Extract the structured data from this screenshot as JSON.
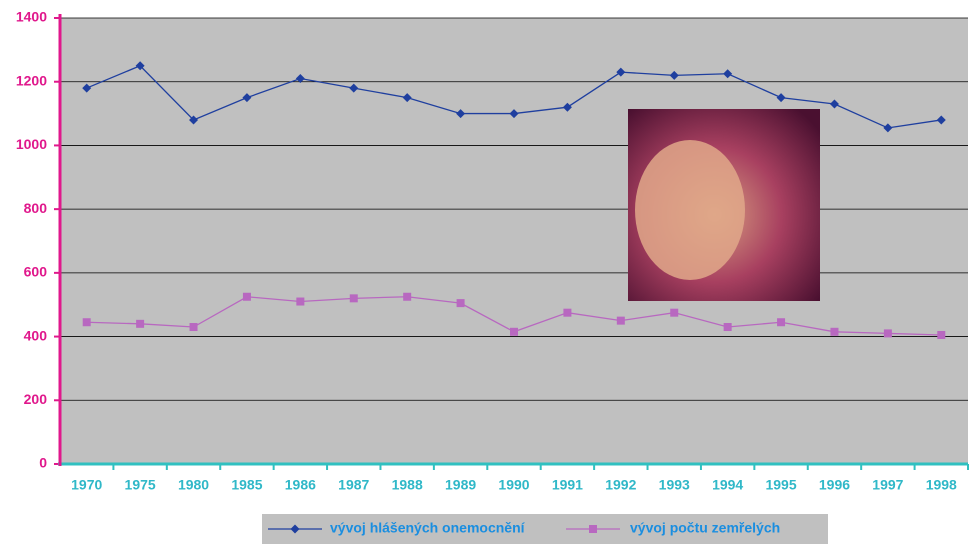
{
  "chart_data": {
    "type": "line",
    "categories": [
      "1970",
      "1975",
      "1980",
      "1985",
      "1986",
      "1987",
      "1988",
      "1989",
      "1990",
      "1991",
      "1992",
      "1993",
      "1994",
      "1995",
      "1996",
      "1997",
      "1998"
    ],
    "series": [
      {
        "name": "vývoj hlášených onemocnění",
        "color": "#1f3f9f",
        "marker": "diamond",
        "values": [
          1180,
          1250,
          1080,
          1150,
          1210,
          1180,
          1150,
          1100,
          1100,
          1120,
          1230,
          1220,
          1225,
          1150,
          1130,
          1055,
          1080
        ]
      },
      {
        "name": "vývoj počtu zemřelých",
        "color": "#b868c0",
        "marker": "square",
        "values": [
          445,
          440,
          430,
          525,
          510,
          520,
          525,
          505,
          415,
          475,
          450,
          475,
          430,
          445,
          415,
          410,
          405
        ]
      }
    ],
    "ylim": [
      0,
      1400
    ],
    "yticks": [
      0,
      200,
      400,
      600,
      800,
      1000,
      1200,
      1400
    ],
    "grid": true
  }
}
